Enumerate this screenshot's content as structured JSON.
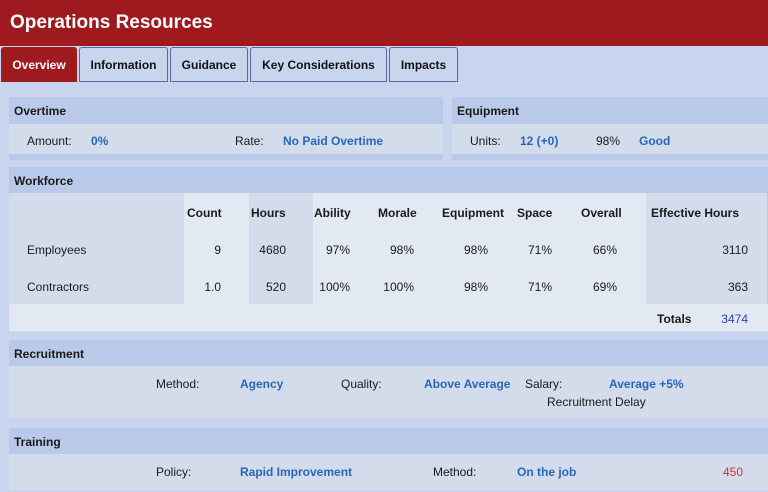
{
  "app": {
    "title": "Operations Resources"
  },
  "tabs": [
    {
      "label": "Overview",
      "active": true
    },
    {
      "label": "Information",
      "active": false
    },
    {
      "label": "Guidance",
      "active": false
    },
    {
      "label": "Key Considerations",
      "active": false
    },
    {
      "label": "Impacts",
      "active": false
    }
  ],
  "overtime": {
    "title": "Overtime",
    "amount_label": "Amount:",
    "amount_value": "0%",
    "rate_label": "Rate:",
    "rate_value": "No Paid Overtime"
  },
  "equipment": {
    "title": "Equipment",
    "units_label": "Units:",
    "units_value": "12 (+0)",
    "percent": "98%",
    "status": "Good"
  },
  "workforce": {
    "title": "Workforce",
    "headers": [
      "Count",
      "Hours",
      "Ability",
      "Morale",
      "Equipment",
      "Space",
      "Overall",
      "Effective Hours"
    ],
    "rows": [
      {
        "name": "Employees",
        "count": "9",
        "hours": "4680",
        "ability": "97%",
        "morale": "98%",
        "equipment": "98%",
        "space": "71%",
        "overall": "66%",
        "effective_hours": "3110"
      },
      {
        "name": "Contractors",
        "count": "1.0",
        "hours": "520",
        "ability": "100%",
        "morale": "100%",
        "equipment": "98%",
        "space": "71%",
        "overall": "69%",
        "effective_hours": "363"
      }
    ],
    "totals_label": "Totals",
    "totals_value": "3474"
  },
  "recruitment": {
    "title": "Recruitment",
    "method_label": "Method:",
    "method_value": "Agency",
    "quality_label": "Quality:",
    "quality_value": "Above Average",
    "salary_label": "Salary:",
    "salary_value": "Average +5%",
    "delay_label": "Recruitment Delay"
  },
  "training": {
    "title": "Training",
    "policy_label": "Policy:",
    "policy_value": "Rapid Improvement",
    "method_label": "Method:",
    "method_value": "On the job",
    "cost_value": "450"
  },
  "colors": {
    "brand": "#9e1a1e",
    "link": "#2a66b8",
    "cost": "#d0313a",
    "totals": "#2f3fc0"
  }
}
